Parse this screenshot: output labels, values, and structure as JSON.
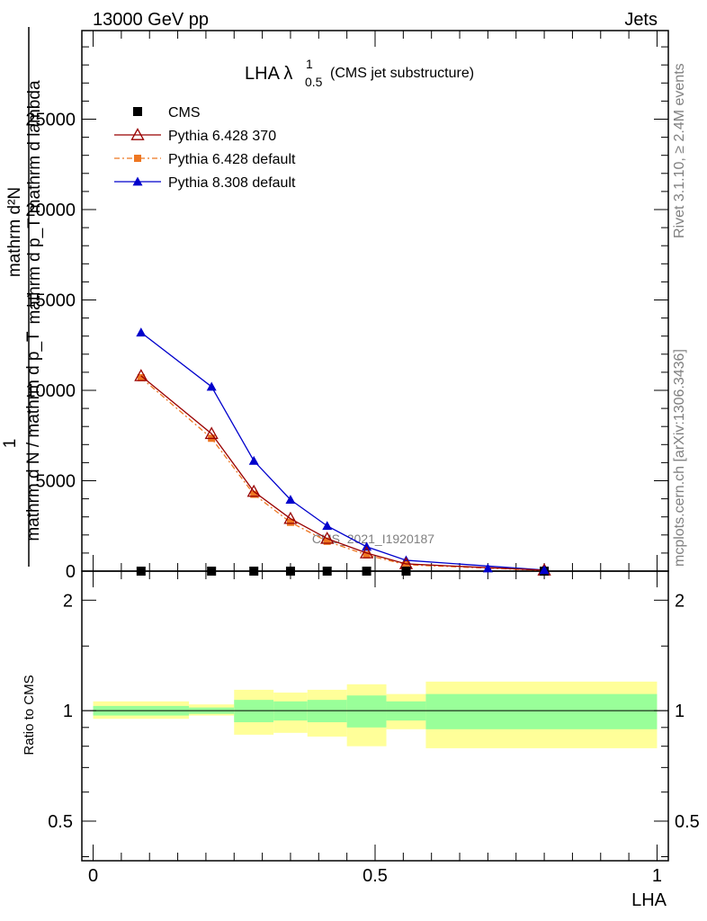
{
  "header": {
    "energy_label": "13000 GeV pp",
    "process_label": "Jets"
  },
  "side_labels": {
    "rivet": "Rivet 3.1.10, ≥ 2.4M events",
    "site": "mcplots.cern.ch [arXiv:1306.3436]"
  },
  "plot_title": {
    "main": "LHA λ",
    "superscript": "1",
    "subscript": "0.5",
    "suffix": "(CMS jet substructure)"
  },
  "watermark": "CMS_2021_I1920187",
  "y_axis_top": {
    "numerator_lines": [
      "mathrm d²N",
      "1"
    ],
    "denominator_line": "mathrm d N / mathrm d p",
    "overlap_lines": [
      "mathrm d p_T mathrm d lambda",
      "mathrm d p_T"
    ],
    "numerator_main": "mathrm d²N",
    "numerator_sub": "mathrm d p_T mathrm d lambda",
    "one": "1",
    "denominator": "mathrm d N / mathrm d p_T"
  },
  "y_axis_bottom_label": "Ratio to CMS",
  "x_axis_label": "LHA",
  "colors": {
    "cms": "#000000",
    "py6_370": "#990000",
    "py6_default": "#ee7722",
    "py8_default": "#0000cc",
    "band_inner": "#99ff99",
    "band_outer": "#ffff99"
  },
  "legend": [
    {
      "label": "CMS",
      "color": "#000000",
      "marker": "square"
    },
    {
      "label": "Pythia 6.428 370",
      "color": "#990000",
      "marker": "open-triangle"
    },
    {
      "label": "Pythia 6.428 default",
      "color": "#ee7722",
      "marker": "small-square"
    },
    {
      "label": "Pythia 8.308 default",
      "color": "#0000cc",
      "marker": "filled-triangle"
    }
  ],
  "chart_data": [
    {
      "type": "line",
      "panel": "main",
      "xlim": [
        -0.02,
        1.02
      ],
      "ylim": [
        0,
        29900
      ],
      "y_ticks": [
        0,
        5000,
        10000,
        15000,
        20000,
        25000
      ],
      "y_tick_labels": [
        "0",
        "5000",
        "10000",
        "15000",
        "20000",
        "25000"
      ],
      "x": [
        0.085,
        0.21,
        0.285,
        0.35,
        0.415,
        0.485,
        0.555,
        0.8
      ],
      "series": [
        {
          "name": "CMS",
          "values": [
            0,
            0,
            0,
            0,
            0,
            0,
            0,
            0
          ]
        },
        {
          "name": "Pythia 6.428 370",
          "values": [
            10800,
            7600,
            4400,
            2900,
            1800,
            1000,
            400,
            50
          ]
        },
        {
          "name": "Pythia 6.428 default",
          "values": [
            10700,
            7350,
            4250,
            2700,
            1650,
            900,
            350,
            40
          ]
        },
        {
          "name": "Pythia 8.308 default",
          "values": [
            13200,
            10200,
            6100,
            3950,
            2500,
            1350,
            600,
            60
          ]
        }
      ]
    },
    {
      "type": "area",
      "panel": "ratio",
      "xlim": [
        -0.02,
        1.02
      ],
      "ylim": [
        0.39,
        2.4
      ],
      "log_scale": true,
      "y_ticks": [
        0.5,
        1,
        2
      ],
      "y_tick_labels": [
        "0.5",
        "1",
        "2"
      ],
      "x_ticks": [
        0,
        0.5,
        1
      ],
      "x_tick_labels": [
        "0",
        "0.5",
        "1"
      ],
      "bins": [
        {
          "lo": 0.0,
          "hi": 0.17,
          "inner": [
            0.97,
            1.03
          ],
          "outer": [
            0.95,
            1.06
          ]
        },
        {
          "lo": 0.17,
          "hi": 0.25,
          "inner": [
            0.98,
            1.02
          ],
          "outer": [
            0.97,
            1.04
          ]
        },
        {
          "lo": 0.25,
          "hi": 0.32,
          "inner": [
            0.93,
            1.07
          ],
          "outer": [
            0.86,
            1.14
          ]
        },
        {
          "lo": 0.32,
          "hi": 0.38,
          "inner": [
            0.94,
            1.06
          ],
          "outer": [
            0.87,
            1.12
          ]
        },
        {
          "lo": 0.38,
          "hi": 0.45,
          "inner": [
            0.93,
            1.07
          ],
          "outer": [
            0.85,
            1.14
          ]
        },
        {
          "lo": 0.45,
          "hi": 0.52,
          "inner": [
            0.9,
            1.1
          ],
          "outer": [
            0.8,
            1.18
          ]
        },
        {
          "lo": 0.52,
          "hi": 0.59,
          "inner": [
            0.94,
            1.06
          ],
          "outer": [
            0.89,
            1.11
          ]
        },
        {
          "lo": 0.59,
          "hi": 1.0,
          "inner": [
            0.89,
            1.11
          ],
          "outer": [
            0.79,
            1.2
          ]
        }
      ]
    }
  ]
}
